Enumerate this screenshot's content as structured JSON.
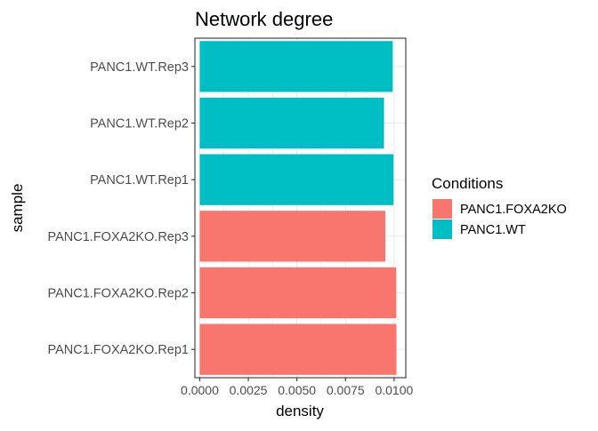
{
  "chart_data": {
    "type": "bar",
    "orientation": "horizontal",
    "title": "Network degree",
    "xlabel": "density",
    "ylabel": "sample",
    "xlim": [
      -0.00025,
      0.0106
    ],
    "x_ticks": [
      "0.0000",
      "0.0025",
      "0.0050",
      "0.0075",
      "0.0100"
    ],
    "x_tick_values": [
      0,
      0.0025,
      0.005,
      0.0075,
      0.01
    ],
    "grid": true,
    "legend_position": "right",
    "legend": {
      "title": "Conditions",
      "entries": [
        {
          "label": "PANC1.FOXA2KO",
          "color": "#F8766D"
        },
        {
          "label": "PANC1.WT",
          "color": "#00BFC4"
        }
      ]
    },
    "categories": [
      "PANC1.FOXA2KO.Rep1",
      "PANC1.FOXA2KO.Rep2",
      "PANC1.FOXA2KO.Rep3",
      "PANC1.WT.Rep1",
      "PANC1.WT.Rep2",
      "PANC1.WT.Rep3"
    ],
    "values": [
      0.01012,
      0.01011,
      0.00955,
      0.00997,
      0.00948,
      0.00993
    ],
    "conditions": [
      "PANC1.FOXA2KO",
      "PANC1.FOXA2KO",
      "PANC1.FOXA2KO",
      "PANC1.WT",
      "PANC1.WT",
      "PANC1.WT"
    ]
  }
}
